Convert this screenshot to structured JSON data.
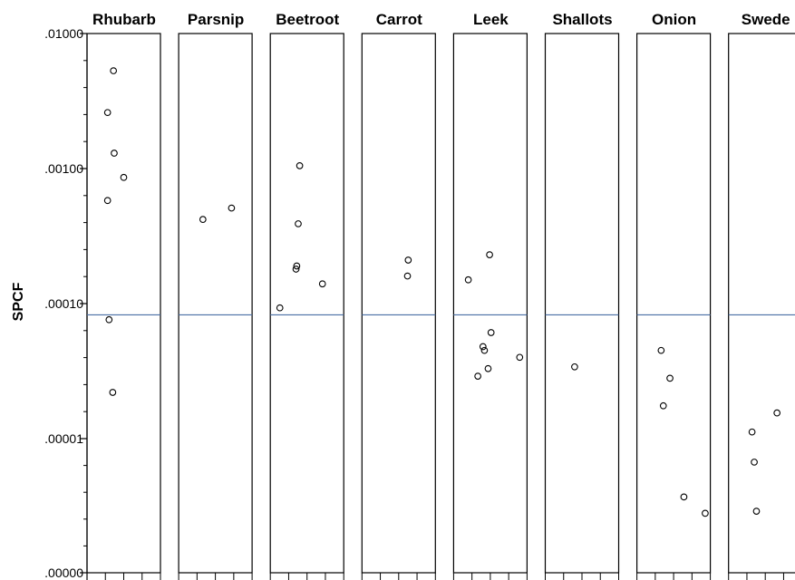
{
  "chart_data": {
    "type": "scatter",
    "ylabel": "SPCF",
    "yscale": "log",
    "ylim": [
      1e-07,
      0.01
    ],
    "y_ticks": [
      {
        "value": 0.01,
        "label": ".01000"
      },
      {
        "value": 0.001,
        "label": ".00100"
      },
      {
        "value": 0.0001,
        "label": ".00010"
      },
      {
        "value": 1e-05,
        "label": ".00001"
      },
      {
        "value": 1e-07,
        "label": ".00000"
      }
    ],
    "x_minor_ticks_per_panel": 4,
    "reference_line_color": "#4a6fa5",
    "marker_color": "#000000",
    "panels": [
      {
        "title": "Rhubarb",
        "reference": 8.25e-05,
        "points": [
          {
            "x": 0.36,
            "y": 0.0053
          },
          {
            "x": 0.28,
            "y": 0.0026
          },
          {
            "x": 0.37,
            "y": 0.0013
          },
          {
            "x": 0.5,
            "y": 0.00086
          },
          {
            "x": 0.28,
            "y": 0.00058
          },
          {
            "x": 0.3,
            "y": 7.6e-05
          },
          {
            "x": 0.35,
            "y": 2.2e-05
          }
        ]
      },
      {
        "title": "Parsnip",
        "reference": 8.25e-05,
        "points": [
          {
            "x": 0.33,
            "y": 0.00042
          },
          {
            "x": 0.72,
            "y": 0.00051
          }
        ]
      },
      {
        "title": "Beetroot",
        "reference": 8.25e-05,
        "points": [
          {
            "x": 0.4,
            "y": 0.00105
          },
          {
            "x": 0.38,
            "y": 0.00039
          },
          {
            "x": 0.36,
            "y": 0.00019
          },
          {
            "x": 0.35,
            "y": 0.00018
          },
          {
            "x": 0.71,
            "y": 0.00014
          },
          {
            "x": 0.13,
            "y": 9.3e-05
          }
        ]
      },
      {
        "title": "Carrot",
        "reference": 8.25e-05,
        "points": [
          {
            "x": 0.63,
            "y": 0.00021
          },
          {
            "x": 0.62,
            "y": 0.00016
          }
        ]
      },
      {
        "title": "Leek",
        "reference": 8.25e-05,
        "points": [
          {
            "x": 0.49,
            "y": 0.00023
          },
          {
            "x": 0.2,
            "y": 0.00015
          },
          {
            "x": 0.51,
            "y": 6.1e-05
          },
          {
            "x": 0.4,
            "y": 4.8e-05
          },
          {
            "x": 0.42,
            "y": 4.5e-05
          },
          {
            "x": 0.9,
            "y": 4e-05
          },
          {
            "x": 0.47,
            "y": 3.3e-05
          },
          {
            "x": 0.33,
            "y": 2.9e-05
          }
        ]
      },
      {
        "title": "Shallots",
        "reference": 8.25e-05,
        "points": [
          {
            "x": 0.4,
            "y": 3.4e-05
          }
        ]
      },
      {
        "title": "Onion",
        "reference": 8.25e-05,
        "points": [
          {
            "x": 0.33,
            "y": 4.5e-05
          },
          {
            "x": 0.45,
            "y": 2.8e-05
          },
          {
            "x": 0.36,
            "y": 1.75e-05
          },
          {
            "x": 0.64,
            "y": 3.7e-06
          },
          {
            "x": 0.93,
            "y": 2.8e-06
          }
        ]
      },
      {
        "title": "Swede",
        "reference": 8.25e-05,
        "points": [
          {
            "x": 0.66,
            "y": 1.55e-05
          },
          {
            "x": 0.32,
            "y": 1.12e-05
          },
          {
            "x": 0.35,
            "y": 6.7e-06
          },
          {
            "x": 0.38,
            "y": 2.9e-06
          }
        ]
      }
    ]
  }
}
